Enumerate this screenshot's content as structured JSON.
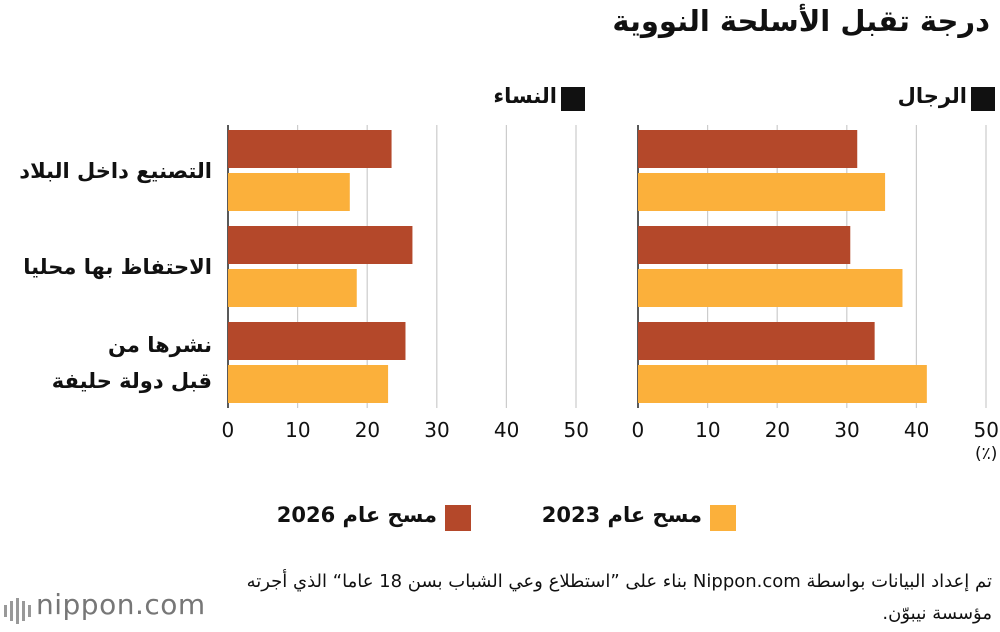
{
  "title": "درجة تقبل الأسلحة النووية",
  "chart_data": [
    {
      "type": "bar",
      "orientation": "horizontal",
      "title": "النساء",
      "categories": [
        "التصنيع داخل البلاد",
        "الاحتفاظ بها محليا",
        "نشرها من\nقبل دولة حليفة"
      ],
      "series": [
        {
          "name": "مسح عام 2026",
          "color": "#b4482a",
          "values": [
            23.5,
            26.5,
            25.5
          ]
        },
        {
          "name": "مسح عام 2023",
          "color": "#fbb03b",
          "values": [
            17.5,
            18.5,
            23
          ]
        }
      ],
      "xlim": [
        0,
        50
      ],
      "xticks": [
        0,
        10,
        20,
        30,
        40,
        50
      ],
      "grid": true
    },
    {
      "type": "bar",
      "orientation": "horizontal",
      "title": "الرجال",
      "series": [
        {
          "color": "#b4482a",
          "values": [
            31.5,
            30.5,
            34
          ]
        },
        {
          "color": "#fbb03b",
          "values": [
            35.5,
            38,
            41.5
          ]
        }
      ],
      "xlim": [
        0,
        50
      ],
      "xticks": [
        0,
        10,
        20,
        30,
        40,
        50
      ],
      "x_unit": "(٪)",
      "grid": true
    }
  ],
  "source": "تم إعداد البيانات بواسطة Nippon.com بناء على ”استطلاع وعي الشباب بسن 18 عاما“ الذي أجرته مؤسسة نيبوّن.",
  "logo": "nippon.com"
}
